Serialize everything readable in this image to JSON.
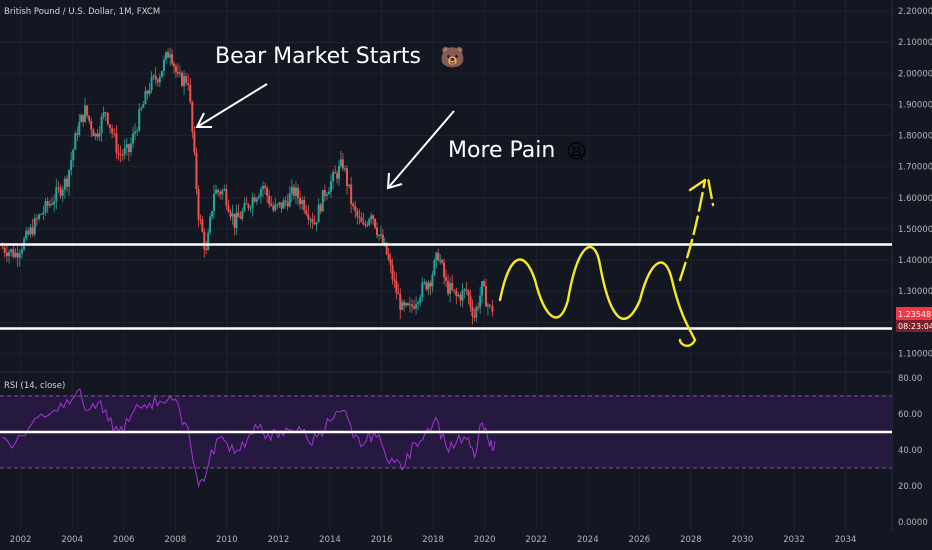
{
  "chart_data": {
    "type": "candlestick",
    "title": "British Pound / U.S. Dollar, 1M, FXCM",
    "x_axis": {
      "tick_labels": [
        "2002",
        "2004",
        "2006",
        "2008",
        "2010",
        "2012",
        "2014",
        "2016",
        "2018",
        "2020",
        "2022",
        "2024",
        "2026",
        "2028",
        "2030",
        "2032",
        "2034"
      ],
      "range": [
        2001.2,
        2035.8
      ]
    },
    "y_axis": {
      "tick_labels": [
        "2.20000",
        "2.10000",
        "2.00000",
        "1.90000",
        "1.80000",
        "1.70000",
        "1.60000",
        "1.50000",
        "1.40000",
        "1.30000",
        "1.20000",
        "1.10000"
      ],
      "range": [
        1.04,
        2.21
      ]
    },
    "series": [
      {
        "kind": "candles",
        "points": [
          [
            2001.3,
            1.44
          ],
          [
            2001.8,
            1.42
          ],
          [
            2002.3,
            1.48
          ],
          [
            2002.8,
            1.55
          ],
          [
            2003.3,
            1.6
          ],
          [
            2003.8,
            1.66
          ],
          [
            2004.2,
            1.82
          ],
          [
            2004.5,
            1.88
          ],
          [
            2004.9,
            1.8
          ],
          [
            2005.3,
            1.88
          ],
          [
            2005.8,
            1.74
          ],
          [
            2006.2,
            1.75
          ],
          [
            2006.6,
            1.86
          ],
          [
            2007.0,
            1.96
          ],
          [
            2007.4,
            2.0
          ],
          [
            2007.8,
            2.08
          ],
          [
            2008.1,
            1.98
          ],
          [
            2008.5,
            1.98
          ],
          [
            2008.9,
            1.55
          ],
          [
            2009.2,
            1.42
          ],
          [
            2009.5,
            1.62
          ],
          [
            2009.9,
            1.62
          ],
          [
            2010.3,
            1.52
          ],
          [
            2010.6,
            1.55
          ],
          [
            2011.0,
            1.6
          ],
          [
            2011.4,
            1.64
          ],
          [
            2011.8,
            1.56
          ],
          [
            2012.2,
            1.58
          ],
          [
            2012.6,
            1.62
          ],
          [
            2013.0,
            1.58
          ],
          [
            2013.4,
            1.52
          ],
          [
            2013.8,
            1.62
          ],
          [
            2014.2,
            1.67
          ],
          [
            2014.5,
            1.71
          ],
          [
            2014.9,
            1.56
          ],
          [
            2015.3,
            1.5
          ],
          [
            2015.6,
            1.56
          ],
          [
            2015.9,
            1.48
          ],
          [
            2016.2,
            1.42
          ],
          [
            2016.5,
            1.32
          ],
          [
            2016.8,
            1.24
          ],
          [
            2017.1,
            1.24
          ],
          [
            2017.5,
            1.3
          ],
          [
            2017.9,
            1.34
          ],
          [
            2018.2,
            1.42
          ],
          [
            2018.5,
            1.32
          ],
          [
            2018.9,
            1.28
          ],
          [
            2019.3,
            1.3
          ],
          [
            2019.6,
            1.22
          ],
          [
            2019.9,
            1.31
          ],
          [
            2020.2,
            1.24
          ],
          [
            2020.4,
            1.25
          ]
        ]
      },
      {
        "kind": "rsi",
        "name": "RSI (14, close)",
        "points": [
          [
            2001.3,
            47
          ],
          [
            2001.8,
            44
          ],
          [
            2002.3,
            52
          ],
          [
            2002.8,
            60
          ],
          [
            2003.3,
            62
          ],
          [
            2003.8,
            68
          ],
          [
            2004.2,
            73
          ],
          [
            2004.6,
            62
          ],
          [
            2005.0,
            66
          ],
          [
            2005.4,
            56
          ],
          [
            2005.8,
            50
          ],
          [
            2006.2,
            56
          ],
          [
            2006.6,
            64
          ],
          [
            2007.0,
            66
          ],
          [
            2007.4,
            67
          ],
          [
            2007.8,
            70
          ],
          [
            2008.2,
            60
          ],
          [
            2008.5,
            52
          ],
          [
            2008.9,
            20
          ],
          [
            2009.2,
            27
          ],
          [
            2009.6,
            46
          ],
          [
            2010.0,
            44
          ],
          [
            2010.4,
            40
          ],
          [
            2010.8,
            46
          ],
          [
            2011.2,
            52
          ],
          [
            2011.6,
            49
          ],
          [
            2012.0,
            47
          ],
          [
            2012.4,
            51
          ],
          [
            2012.8,
            53
          ],
          [
            2013.2,
            44
          ],
          [
            2013.6,
            50
          ],
          [
            2014.0,
            56
          ],
          [
            2014.5,
            62
          ],
          [
            2014.9,
            47
          ],
          [
            2015.3,
            43
          ],
          [
            2015.7,
            50
          ],
          [
            2016.1,
            40
          ],
          [
            2016.5,
            33
          ],
          [
            2016.9,
            31
          ],
          [
            2017.3,
            44
          ],
          [
            2017.7,
            50
          ],
          [
            2018.1,
            58
          ],
          [
            2018.5,
            42
          ],
          [
            2018.9,
            44
          ],
          [
            2019.3,
            46
          ],
          [
            2019.6,
            36
          ],
          [
            2019.9,
            55
          ],
          [
            2020.2,
            42
          ],
          [
            2020.4,
            45
          ]
        ]
      }
    ],
    "rsi_axis": {
      "tick_labels": [
        "80.00",
        "60.00",
        "40.00",
        "20.00",
        "0.0000"
      ],
      "range": [
        0,
        80
      ]
    },
    "annotations": [
      {
        "name": "bear-market-label",
        "text": "Bear Market Starts"
      },
      {
        "name": "more-pain-label",
        "text": "More Pain"
      }
    ],
    "horizontal_lines": [
      1.45,
      1.18
    ],
    "rsi_line": 50,
    "price_badges": [
      "1.23548",
      "08:23:04"
    ],
    "colors": {
      "background": "#131722",
      "up": "#26a69a",
      "down": "#ef5350",
      "rsi": "#a335d4",
      "rsi_band": "#3b1f5c",
      "annotation": "#ffffff",
      "projection": "#f5ea1f",
      "badge": "#f23645"
    }
  }
}
